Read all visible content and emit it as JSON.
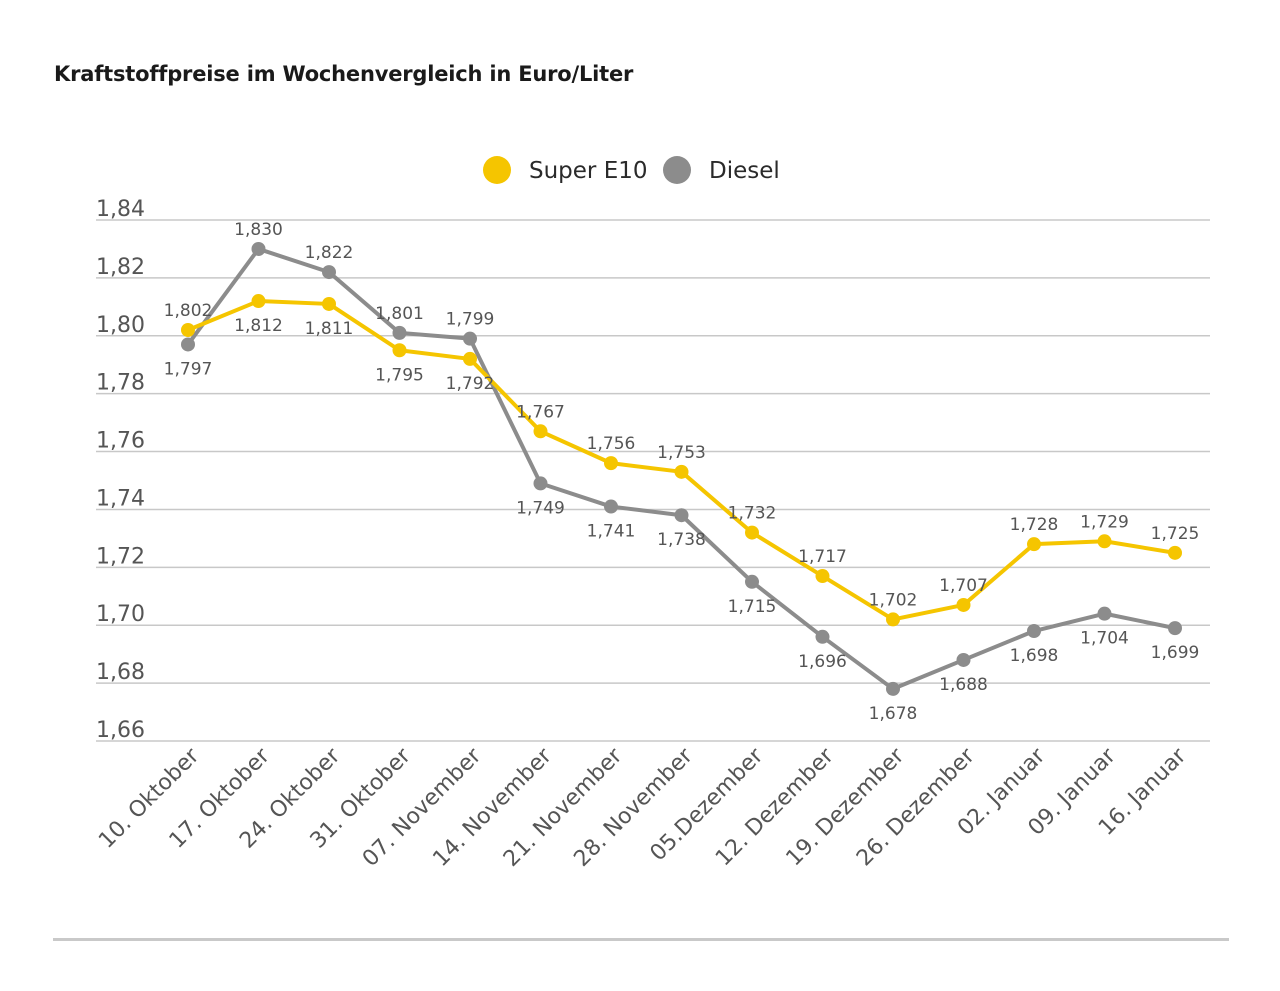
{
  "chart_data": {
    "type": "line",
    "title": "Kraftstoffpreise im Wochenvergleich in Euro/Liter",
    "xlabel": "",
    "ylabel": "",
    "ylim": [
      1.66,
      1.84
    ],
    "yticks": [
      "1,84",
      "1,82",
      "1,80",
      "1,78",
      "1,76",
      "1,74",
      "1,72",
      "1,70",
      "1,68",
      "1,66"
    ],
    "ytick_values": [
      1.84,
      1.82,
      1.8,
      1.78,
      1.76,
      1.74,
      1.72,
      1.7,
      1.68,
      1.66
    ],
    "grid": true,
    "legend_position": "top-center",
    "categories": [
      "10. Oktober",
      "17. Oktober",
      "24. Oktober",
      "31. Oktober",
      "07. November",
      "14. November",
      "21. November",
      "28. November",
      "05.Dezember",
      "12. Dezember",
      "19. Dezember",
      "26. Dezember",
      "02. Januar",
      "09. Januar",
      "16. Januar"
    ],
    "series": [
      {
        "name": "Super E10",
        "color": "#f5c500",
        "values": [
          1.802,
          1.812,
          1.811,
          1.795,
          1.792,
          1.767,
          1.756,
          1.753,
          1.732,
          1.717,
          1.702,
          1.707,
          1.728,
          1.729,
          1.725
        ],
        "labels": [
          "1,802",
          "1,812",
          "1,811",
          "1,795",
          "1,792",
          "1,767",
          "1,756",
          "1,753",
          "1,732",
          "1,717",
          "1,702",
          "1,707",
          "1,728",
          "1,729",
          "1,725"
        ]
      },
      {
        "name": "Diesel",
        "color": "#8c8c8c",
        "values": [
          1.797,
          1.83,
          1.822,
          1.801,
          1.799,
          1.749,
          1.741,
          1.738,
          1.715,
          1.696,
          1.678,
          1.688,
          1.698,
          1.704,
          1.699
        ],
        "labels": [
          "1,797",
          "1,830",
          "1,822",
          "1,801",
          "1,799",
          "1,749",
          "1,741",
          "1,738",
          "1,715",
          "1,696",
          "1,678",
          "1,688",
          "1,698",
          "1,704",
          "1,699"
        ]
      }
    ]
  }
}
